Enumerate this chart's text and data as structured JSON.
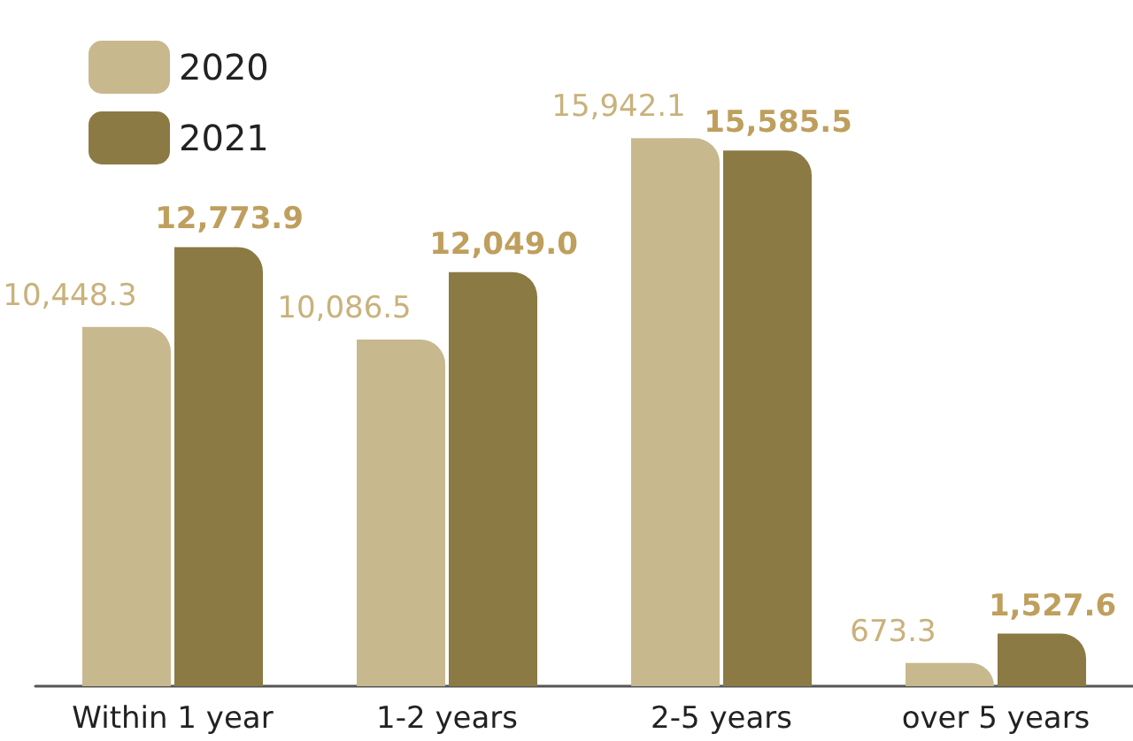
{
  "chart_data": {
    "type": "bar",
    "categories": [
      "Within 1 year",
      "1-2 years",
      "2-5 years",
      "over 5 years"
    ],
    "series": [
      {
        "name": "2020",
        "color": "#c8b88e",
        "values": [
          10448.3,
          10086.5,
          15942.1,
          673.3
        ],
        "value_labels": [
          "10,448.3",
          "10,086.5",
          "15,942.1",
          "673.3"
        ]
      },
      {
        "name": "2021",
        "color": "#8c7a44",
        "values": [
          12773.9,
          12049.0,
          15585.5,
          1527.6
        ],
        "value_labels": [
          "12,773.9",
          "12,049.0",
          "15,585.5",
          "1,527.6"
        ]
      }
    ],
    "legend": "top left"
  }
}
